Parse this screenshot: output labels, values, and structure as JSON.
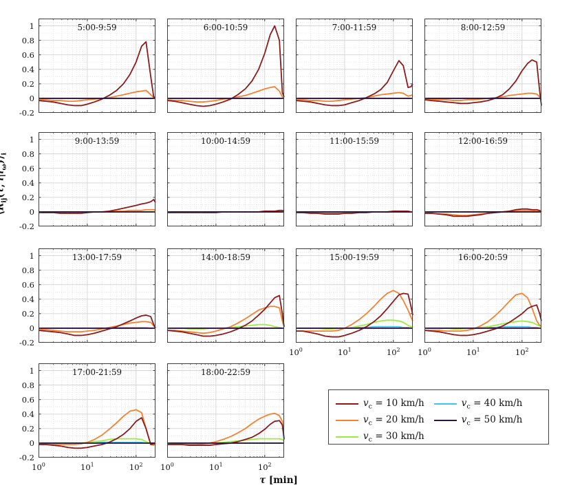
{
  "figure": {
    "x_axis_label": "τ [min]",
    "y_axis_label": "⟨R_ij(τ, l|l_ω)⟩_i"
  },
  "chart_data": {
    "type": "line",
    "x_scale": "log",
    "grid": "major solid + minor dotted",
    "xlim": [
      1,
      250
    ],
    "ylim": [
      -0.2,
      1.1
    ],
    "x_ticks": [
      1,
      10,
      100
    ],
    "y_ticks": [
      -0.2,
      0,
      0.2,
      0.4,
      0.6,
      0.8,
      1
    ],
    "xlabel": "τ [min]",
    "ylabel": "⟨R_ij(τ, l|l_ω)⟩_i",
    "legend_position": "bottom-right outside",
    "series_note": "series order: v_c = 10,20,30,40,50 km/h; value 'flat' means constant 0 line",
    "legend": [
      {
        "label": "v_c = 10 km/h",
        "color": "#8B1A1A"
      },
      {
        "label": "v_c = 20 km/h",
        "color": "#F5812F"
      },
      {
        "label": "v_c = 30 km/h",
        "color": "#9BEC3F"
      },
      {
        "label": "v_c = 40 km/h",
        "color": "#41C3F0"
      },
      {
        "label": "v_c = 50 km/h",
        "color": "#2E1440"
      }
    ],
    "x": [
      1,
      1.4,
      2,
      2.8,
      4,
      5.5,
      7.5,
      10,
      14,
      20,
      28,
      40,
      55,
      75,
      100,
      130,
      160,
      200,
      230,
      250
    ],
    "panels": [
      {
        "title": "5:00-9:59",
        "series": [
          [
            -0.03,
            -0.04,
            -0.05,
            -0.07,
            -0.09,
            -0.1,
            -0.1,
            -0.08,
            -0.05,
            -0.01,
            0.04,
            0.11,
            0.2,
            0.33,
            0.5,
            0.72,
            0.78,
            0.3,
            0.02,
            0.01
          ],
          [
            -0.02,
            -0.02,
            -0.03,
            -0.03,
            -0.04,
            -0.04,
            -0.03,
            -0.02,
            -0.01,
            0.0,
            0.01,
            0.03,
            0.05,
            0.07,
            0.09,
            0.1,
            0.11,
            0.05,
            0.01,
            0.0
          ],
          "flat",
          "flat",
          "flat"
        ]
      },
      {
        "title": "6:00-10:59",
        "series": [
          [
            -0.03,
            -0.04,
            -0.06,
            -0.08,
            -0.1,
            -0.11,
            -0.1,
            -0.08,
            -0.05,
            -0.01,
            0.05,
            0.13,
            0.24,
            0.4,
            0.62,
            0.88,
            1.0,
            0.8,
            0.08,
            0.02
          ],
          [
            -0.02,
            -0.03,
            -0.03,
            -0.04,
            -0.05,
            -0.05,
            -0.04,
            -0.03,
            -0.01,
            0.0,
            0.02,
            0.04,
            0.07,
            0.1,
            0.13,
            0.15,
            0.16,
            0.1,
            0.02,
            0.01
          ],
          "flat",
          "flat",
          "flat"
        ]
      },
      {
        "title": "7:00-11:59",
        "series": [
          [
            -0.03,
            -0.04,
            -0.05,
            -0.07,
            -0.09,
            -0.1,
            -0.1,
            -0.09,
            -0.06,
            -0.03,
            0.01,
            0.06,
            0.12,
            0.22,
            0.38,
            0.52,
            0.45,
            0.15,
            0.16,
            0.2
          ],
          [
            -0.02,
            -0.02,
            -0.03,
            -0.03,
            -0.04,
            -0.04,
            -0.03,
            -0.02,
            -0.01,
            0.0,
            0.01,
            0.03,
            0.05,
            0.06,
            0.07,
            0.08,
            0.07,
            0.03,
            0.04,
            0.05
          ],
          "flat",
          "flat",
          "flat"
        ]
      },
      {
        "title": "8:00-12:59",
        "series": [
          [
            -0.02,
            -0.03,
            -0.04,
            -0.05,
            -0.06,
            -0.07,
            -0.07,
            -0.06,
            -0.05,
            -0.03,
            0.0,
            0.05,
            0.13,
            0.24,
            0.38,
            0.48,
            0.53,
            0.5,
            0.1,
            -0.1
          ],
          [
            -0.01,
            -0.01,
            -0.02,
            -0.02,
            -0.03,
            -0.03,
            -0.02,
            -0.02,
            -0.01,
            0.0,
            0.01,
            0.02,
            0.04,
            0.05,
            0.06,
            0.07,
            0.07,
            0.06,
            0.02,
            -0.02
          ],
          "flat",
          "flat",
          "flat"
        ]
      },
      {
        "title": "9:00-13:59",
        "series": [
          [
            -0.01,
            -0.01,
            -0.01,
            -0.02,
            -0.02,
            -0.02,
            -0.02,
            -0.01,
            0.0,
            0.0,
            0.01,
            0.03,
            0.05,
            0.07,
            0.09,
            0.11,
            0.12,
            0.14,
            0.17,
            0.13
          ],
          [
            -0.01,
            -0.01,
            -0.01,
            -0.01,
            -0.01,
            -0.01,
            -0.01,
            0.0,
            0.0,
            0.0,
            0.0,
            0.01,
            0.01,
            0.02,
            0.02,
            0.02,
            0.03,
            0.03,
            0.03,
            0.02
          ],
          "flat",
          "flat",
          "flat"
        ]
      },
      {
        "title": "10:00-14:59",
        "series": [
          [
            -0.01,
            -0.01,
            -0.01,
            -0.01,
            -0.01,
            -0.01,
            -0.01,
            -0.01,
            0.0,
            0.0,
            0.0,
            0.0,
            0.0,
            0.0,
            0.01,
            0.01,
            0.01,
            0.02,
            0.02,
            0.01
          ],
          "flat",
          "flat",
          "flat",
          "flat"
        ]
      },
      {
        "title": "11:00-15:59",
        "series": [
          [
            -0.01,
            -0.01,
            -0.02,
            -0.02,
            -0.03,
            -0.03,
            -0.03,
            -0.02,
            -0.02,
            -0.01,
            -0.01,
            0.0,
            0.0,
            0.0,
            0.01,
            0.01,
            0.01,
            0.01,
            0.0,
            0.0
          ],
          [
            -0.01,
            -0.01,
            -0.01,
            -0.02,
            -0.02,
            -0.02,
            -0.02,
            -0.02,
            -0.01,
            -0.01,
            0.0,
            0.0,
            0.0,
            0.0,
            0.0,
            0.0,
            0.0,
            0.0,
            0.0,
            0.0
          ],
          "flat",
          "flat",
          "flat"
        ]
      },
      {
        "title": "12:00-16:59",
        "series": [
          [
            -0.02,
            -0.02,
            -0.03,
            -0.04,
            -0.06,
            -0.06,
            -0.06,
            -0.05,
            -0.04,
            -0.02,
            -0.01,
            0.0,
            0.01,
            0.03,
            0.04,
            0.04,
            0.03,
            0.03,
            0.02,
            0.0
          ],
          [
            -0.02,
            -0.02,
            -0.03,
            -0.03,
            -0.04,
            -0.05,
            -0.05,
            -0.04,
            -0.03,
            -0.02,
            -0.01,
            0.0,
            0.01,
            0.02,
            0.02,
            0.02,
            0.02,
            0.01,
            0.01,
            0.0
          ],
          "flat",
          "flat",
          "flat"
        ]
      },
      {
        "title": "13:00-17:59",
        "series": [
          [
            -0.03,
            -0.04,
            -0.05,
            -0.06,
            -0.08,
            -0.1,
            -0.1,
            -0.09,
            -0.07,
            -0.04,
            -0.01,
            0.02,
            0.06,
            0.1,
            0.14,
            0.17,
            0.18,
            0.16,
            0.05,
            0.0
          ],
          [
            -0.02,
            -0.02,
            -0.03,
            -0.04,
            -0.05,
            -0.05,
            -0.05,
            -0.04,
            -0.03,
            -0.01,
            0.01,
            0.03,
            0.05,
            0.07,
            0.08,
            0.09,
            0.09,
            0.08,
            0.03,
            0.0
          ],
          [
            0,
            0,
            0,
            0,
            0,
            0,
            0,
            0,
            0,
            0,
            0,
            0.01,
            0.01,
            0.01,
            0.01,
            0.01,
            0.01,
            0,
            0,
            0
          ],
          "flat",
          "flat"
        ]
      },
      {
        "title": "14:00-18:59",
        "series": [
          [
            -0.03,
            -0.04,
            -0.05,
            -0.07,
            -0.09,
            -0.11,
            -0.11,
            -0.1,
            -0.08,
            -0.05,
            -0.01,
            0.04,
            0.1,
            0.18,
            0.26,
            0.35,
            0.42,
            0.45,
            0.2,
            0.02
          ],
          [
            -0.03,
            -0.03,
            -0.04,
            -0.05,
            -0.06,
            -0.07,
            -0.06,
            -0.04,
            -0.01,
            0.02,
            0.07,
            0.13,
            0.19,
            0.25,
            0.28,
            0.3,
            0.3,
            0.28,
            0.1,
            0.02
          ],
          [
            0,
            0,
            0,
            -0.01,
            -0.01,
            -0.01,
            0,
            0,
            0,
            0.01,
            0.02,
            0.03,
            0.04,
            0.05,
            0.05,
            0.04,
            0.02,
            0.01,
            0,
            0
          ],
          "flat",
          "flat"
        ]
      },
      {
        "title": "15:00-19:59",
        "series": [
          [
            -0.04,
            -0.04,
            -0.06,
            -0.08,
            -0.11,
            -0.12,
            -0.12,
            -0.1,
            -0.07,
            -0.03,
            0.02,
            0.09,
            0.17,
            0.27,
            0.37,
            0.46,
            0.48,
            0.47,
            0.3,
            0.18
          ],
          [
            -0.04,
            -0.04,
            -0.04,
            -0.04,
            -0.04,
            -0.04,
            -0.03,
            0.0,
            0.05,
            0.12,
            0.2,
            0.3,
            0.4,
            0.48,
            0.52,
            0.48,
            0.38,
            0.25,
            0.15,
            0.1
          ],
          [
            0,
            0,
            0,
            0,
            -0.01,
            -0.01,
            0,
            0,
            0.01,
            0.03,
            0.05,
            0.08,
            0.1,
            0.11,
            0.11,
            0.1,
            0.08,
            0.04,
            0.02,
            0.02
          ],
          [
            0,
            0,
            0,
            0,
            0,
            0,
            0,
            0,
            0,
            0.01,
            0.01,
            0.02,
            0.02,
            0.02,
            0.02,
            0.02,
            0.01,
            0.01,
            0,
            0
          ],
          "flat"
        ]
      },
      {
        "title": "16:00-20:59",
        "series": [
          [
            -0.03,
            -0.04,
            -0.05,
            -0.07,
            -0.09,
            -0.1,
            -0.1,
            -0.09,
            -0.07,
            -0.04,
            -0.01,
            0.03,
            0.08,
            0.14,
            0.2,
            0.27,
            0.3,
            0.32,
            0.2,
            0.1
          ],
          [
            -0.03,
            -0.03,
            -0.03,
            -0.04,
            -0.04,
            -0.04,
            -0.03,
            -0.01,
            0.03,
            0.09,
            0.17,
            0.27,
            0.37,
            0.46,
            0.48,
            0.42,
            0.28,
            0.1,
            0.04,
            0.03
          ],
          [
            0,
            0,
            0,
            0,
            -0.01,
            -0.01,
            0,
            0,
            0.01,
            0.02,
            0.04,
            0.06,
            0.08,
            0.09,
            0.1,
            0.09,
            0.08,
            0.05,
            0.03,
            0.02
          ],
          [
            0,
            0,
            0,
            0,
            0,
            0,
            0,
            0,
            0,
            0.01,
            0.01,
            0.02,
            0.02,
            0.02,
            0.02,
            0.02,
            0.01,
            0.01,
            0,
            0
          ],
          "flat"
        ]
      },
      {
        "title": "17:00-21:59",
        "series": [
          [
            -0.02,
            -0.02,
            -0.03,
            -0.04,
            -0.06,
            -0.07,
            -0.07,
            -0.06,
            -0.04,
            -0.02,
            0.01,
            0.06,
            0.12,
            0.2,
            0.3,
            0.35,
            0.2,
            -0.02,
            -0.01,
            0.0
          ],
          [
            -0.02,
            -0.02,
            -0.02,
            -0.02,
            -0.02,
            -0.02,
            -0.01,
            0.01,
            0.05,
            0.11,
            0.19,
            0.28,
            0.37,
            0.44,
            0.46,
            0.42,
            0.2,
            -0.02,
            -0.03,
            0.0
          ],
          [
            0,
            0,
            0,
            0,
            0,
            0,
            0,
            0.01,
            0.02,
            0.03,
            0.05,
            0.06,
            0.06,
            0.06,
            0.06,
            0.05,
            0.02,
            -0.01,
            0,
            0
          ],
          [
            0,
            0,
            0,
            0,
            0,
            0,
            0,
            0,
            0,
            0.01,
            0.01,
            0.01,
            0.01,
            0.01,
            0.01,
            0.01,
            0,
            0,
            0,
            0
          ],
          "flat"
        ]
      },
      {
        "title": "18:00-22:59",
        "series": [
          [
            -0.02,
            -0.02,
            -0.02,
            -0.03,
            -0.03,
            -0.03,
            -0.03,
            -0.02,
            -0.01,
            0.0,
            0.02,
            0.05,
            0.08,
            0.13,
            0.19,
            0.26,
            0.3,
            0.31,
            0.25,
            0.05
          ],
          [
            -0.02,
            -0.02,
            -0.02,
            -0.02,
            -0.02,
            -0.01,
            0.0,
            0.02,
            0.05,
            0.09,
            0.14,
            0.2,
            0.27,
            0.33,
            0.37,
            0.4,
            0.41,
            0.38,
            0.3,
            0.07
          ],
          [
            0,
            0,
            0,
            0,
            0,
            0,
            0,
            0,
            0.01,
            0.02,
            0.03,
            0.04,
            0.05,
            0.06,
            0.06,
            0.06,
            0.06,
            0.06,
            0.05,
            0.02
          ],
          "flat",
          "flat"
        ]
      }
    ]
  }
}
